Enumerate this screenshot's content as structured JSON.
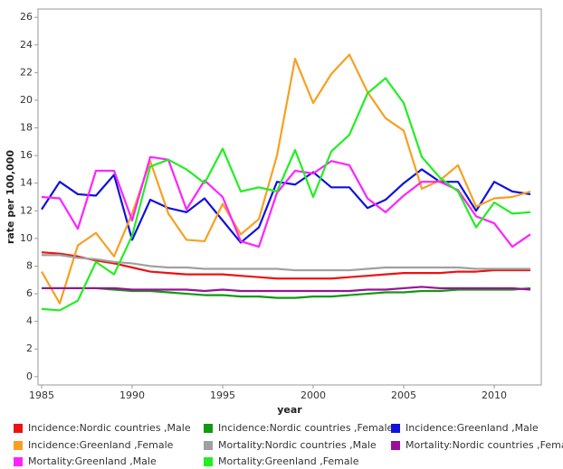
{
  "chart_data": {
    "type": "line",
    "x_label": "year",
    "y_label": "rate per 100,000",
    "x": [
      1985,
      1986,
      1987,
      1988,
      1989,
      1990,
      1991,
      1992,
      1993,
      1994,
      1995,
      1996,
      1997,
      1998,
      1999,
      2000,
      2001,
      2002,
      2003,
      2004,
      2005,
      2006,
      2007,
      2008,
      2009,
      2010,
      2011,
      2012
    ],
    "xlim": [
      1984.8,
      2012.6
    ],
    "xticks": [
      1985,
      1990,
      1995,
      2000,
      2005,
      2010
    ],
    "ylim": [
      -0.6,
      26.6
    ],
    "yticks": [
      0,
      2,
      4,
      6,
      8,
      10,
      12,
      14,
      16,
      18,
      20,
      22,
      24,
      26
    ],
    "grid": false,
    "series": [
      {
        "name": "Incidence:Nordic countries ,Male",
        "color": "#ee1111",
        "values": [
          9.0,
          8.9,
          8.7,
          8.4,
          8.2,
          7.9,
          7.6,
          7.5,
          7.4,
          7.4,
          7.4,
          7.3,
          7.2,
          7.1,
          7.1,
          7.1,
          7.1,
          7.2,
          7.3,
          7.4,
          7.5,
          7.5,
          7.5,
          7.6,
          7.6,
          7.7,
          7.7,
          7.7
        ]
      },
      {
        "name": "Incidence:Nordic countries ,Female",
        "color": "#119911",
        "values": [
          6.4,
          6.4,
          6.4,
          6.4,
          6.3,
          6.2,
          6.2,
          6.1,
          6.0,
          5.9,
          5.9,
          5.8,
          5.8,
          5.7,
          5.7,
          5.8,
          5.8,
          5.9,
          6.0,
          6.1,
          6.1,
          6.2,
          6.2,
          6.3,
          6.3,
          6.3,
          6.3,
          6.4
        ]
      },
      {
        "name": "Incidence:Greenland ,Male",
        "color": "#1111dd",
        "values": [
          12.1,
          14.1,
          13.2,
          13.1,
          14.6,
          9.9,
          12.8,
          12.2,
          11.9,
          12.9,
          11.3,
          9.7,
          10.8,
          14.1,
          13.9,
          14.8,
          13.7,
          13.7,
          12.2,
          12.8,
          14.0,
          15.0,
          14.1,
          14.1,
          12.0,
          14.1,
          13.4,
          13.2
        ]
      },
      {
        "name": "Incidence:Greenland ,Female",
        "color": "#f7a020",
        "values": [
          7.6,
          5.3,
          9.5,
          10.4,
          8.7,
          11.8,
          15.6,
          11.8,
          9.9,
          9.8,
          12.5,
          10.3,
          11.4,
          16.0,
          23.0,
          19.8,
          21.9,
          23.3,
          20.6,
          18.7,
          17.8,
          13.6,
          14.2,
          15.3,
          12.3,
          12.9,
          13.0,
          13.4
        ]
      },
      {
        "name": "Mortality:Nordic countries ,Male",
        "color": "#a0a0a0",
        "values": [
          8.8,
          8.8,
          8.6,
          8.5,
          8.3,
          8.2,
          8.0,
          7.9,
          7.9,
          7.8,
          7.8,
          7.8,
          7.8,
          7.8,
          7.7,
          7.7,
          7.7,
          7.7,
          7.8,
          7.9,
          7.9,
          7.9,
          7.9,
          7.9,
          7.8,
          7.8,
          7.8,
          7.8
        ]
      },
      {
        "name": "Mortality:Nordic countries ,Female",
        "color": "#991199",
        "values": [
          6.4,
          6.4,
          6.4,
          6.4,
          6.4,
          6.3,
          6.3,
          6.3,
          6.3,
          6.2,
          6.3,
          6.2,
          6.2,
          6.2,
          6.2,
          6.2,
          6.2,
          6.2,
          6.3,
          6.3,
          6.4,
          6.5,
          6.4,
          6.4,
          6.4,
          6.4,
          6.4,
          6.3
        ]
      },
      {
        "name": "Mortality:Greenland ,Male",
        "color": "#ff22ff",
        "values": [
          13.0,
          12.9,
          10.7,
          14.9,
          14.9,
          11.3,
          15.9,
          15.7,
          12.1,
          14.2,
          13.0,
          9.8,
          9.4,
          13.3,
          14.9,
          14.7,
          15.6,
          15.3,
          12.9,
          11.9,
          13.1,
          14.1,
          14.1,
          13.5,
          11.6,
          11.1,
          9.4,
          10.3
        ]
      },
      {
        "name": "Mortality:Greenland ,Female",
        "color": "#22ee22",
        "values": [
          4.9,
          4.8,
          5.5,
          8.3,
          7.4,
          10.2,
          15.2,
          15.7,
          15.0,
          14.0,
          16.5,
          13.4,
          13.7,
          13.4,
          16.4,
          13.0,
          16.3,
          17.5,
          20.5,
          21.6,
          19.8,
          15.9,
          14.4,
          13.4,
          10.8,
          12.6,
          11.8,
          11.9
        ]
      }
    ]
  }
}
